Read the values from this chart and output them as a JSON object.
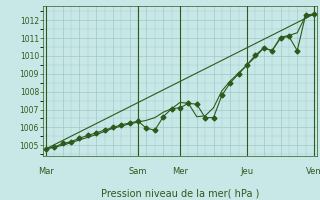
{
  "background_color": "#c8e8e8",
  "grid_color": "#a0c8c8",
  "line_color": "#2d5a1b",
  "xlabel": "Pression niveau de la mer( hPa )",
  "ylim": [
    1004.4,
    1012.8
  ],
  "yticks": [
    1005,
    1006,
    1007,
    1008,
    1009,
    1010,
    1011,
    1012
  ],
  "xtick_labels": [
    "Mar",
    "Sam",
    "Mer",
    "Jeu",
    "Ven"
  ],
  "xtick_positions": [
    0,
    33,
    48,
    72,
    96
  ],
  "vlines": [
    0,
    33,
    48,
    72,
    96
  ],
  "series_line": [
    [
      0,
      1004.8
    ],
    [
      96,
      1012.35
    ]
  ],
  "series_markers": [
    [
      0,
      1004.8
    ],
    [
      3,
      1004.9
    ],
    [
      6,
      1005.1
    ],
    [
      9,
      1005.2
    ],
    [
      12,
      1005.4
    ],
    [
      15,
      1005.55
    ],
    [
      18,
      1005.7
    ],
    [
      21,
      1005.85
    ],
    [
      24,
      1006.0
    ],
    [
      27,
      1006.15
    ],
    [
      30,
      1006.25
    ],
    [
      33,
      1006.35
    ],
    [
      36,
      1005.95
    ],
    [
      39,
      1005.85
    ],
    [
      42,
      1006.6
    ],
    [
      45,
      1007.05
    ],
    [
      48,
      1007.1
    ],
    [
      51,
      1007.35
    ],
    [
      54,
      1007.3
    ],
    [
      57,
      1006.55
    ],
    [
      60,
      1006.55
    ],
    [
      63,
      1007.8
    ],
    [
      66,
      1008.5
    ],
    [
      69,
      1009.0
    ],
    [
      72,
      1009.5
    ],
    [
      75,
      1010.05
    ],
    [
      78,
      1010.45
    ],
    [
      81,
      1010.3
    ],
    [
      84,
      1011.0
    ],
    [
      87,
      1011.1
    ],
    [
      90,
      1010.3
    ],
    [
      93,
      1012.3
    ],
    [
      96,
      1012.35
    ]
  ],
  "series_smooth": [
    [
      0,
      1004.8
    ],
    [
      6,
      1005.0
    ],
    [
      12,
      1005.3
    ],
    [
      18,
      1005.6
    ],
    [
      24,
      1005.95
    ],
    [
      30,
      1006.2
    ],
    [
      33,
      1006.3
    ],
    [
      36,
      1006.4
    ],
    [
      39,
      1006.55
    ],
    [
      42,
      1006.85
    ],
    [
      45,
      1007.05
    ],
    [
      48,
      1007.4
    ],
    [
      51,
      1007.35
    ],
    [
      54,
      1006.6
    ],
    [
      57,
      1006.65
    ],
    [
      60,
      1007.1
    ],
    [
      63,
      1008.05
    ],
    [
      66,
      1008.6
    ],
    [
      69,
      1009.05
    ],
    [
      72,
      1009.5
    ],
    [
      75,
      1009.95
    ],
    [
      78,
      1010.45
    ],
    [
      81,
      1010.3
    ],
    [
      84,
      1011.05
    ],
    [
      87,
      1011.15
    ],
    [
      90,
      1011.3
    ],
    [
      93,
      1012.25
    ],
    [
      96,
      1012.3
    ]
  ]
}
